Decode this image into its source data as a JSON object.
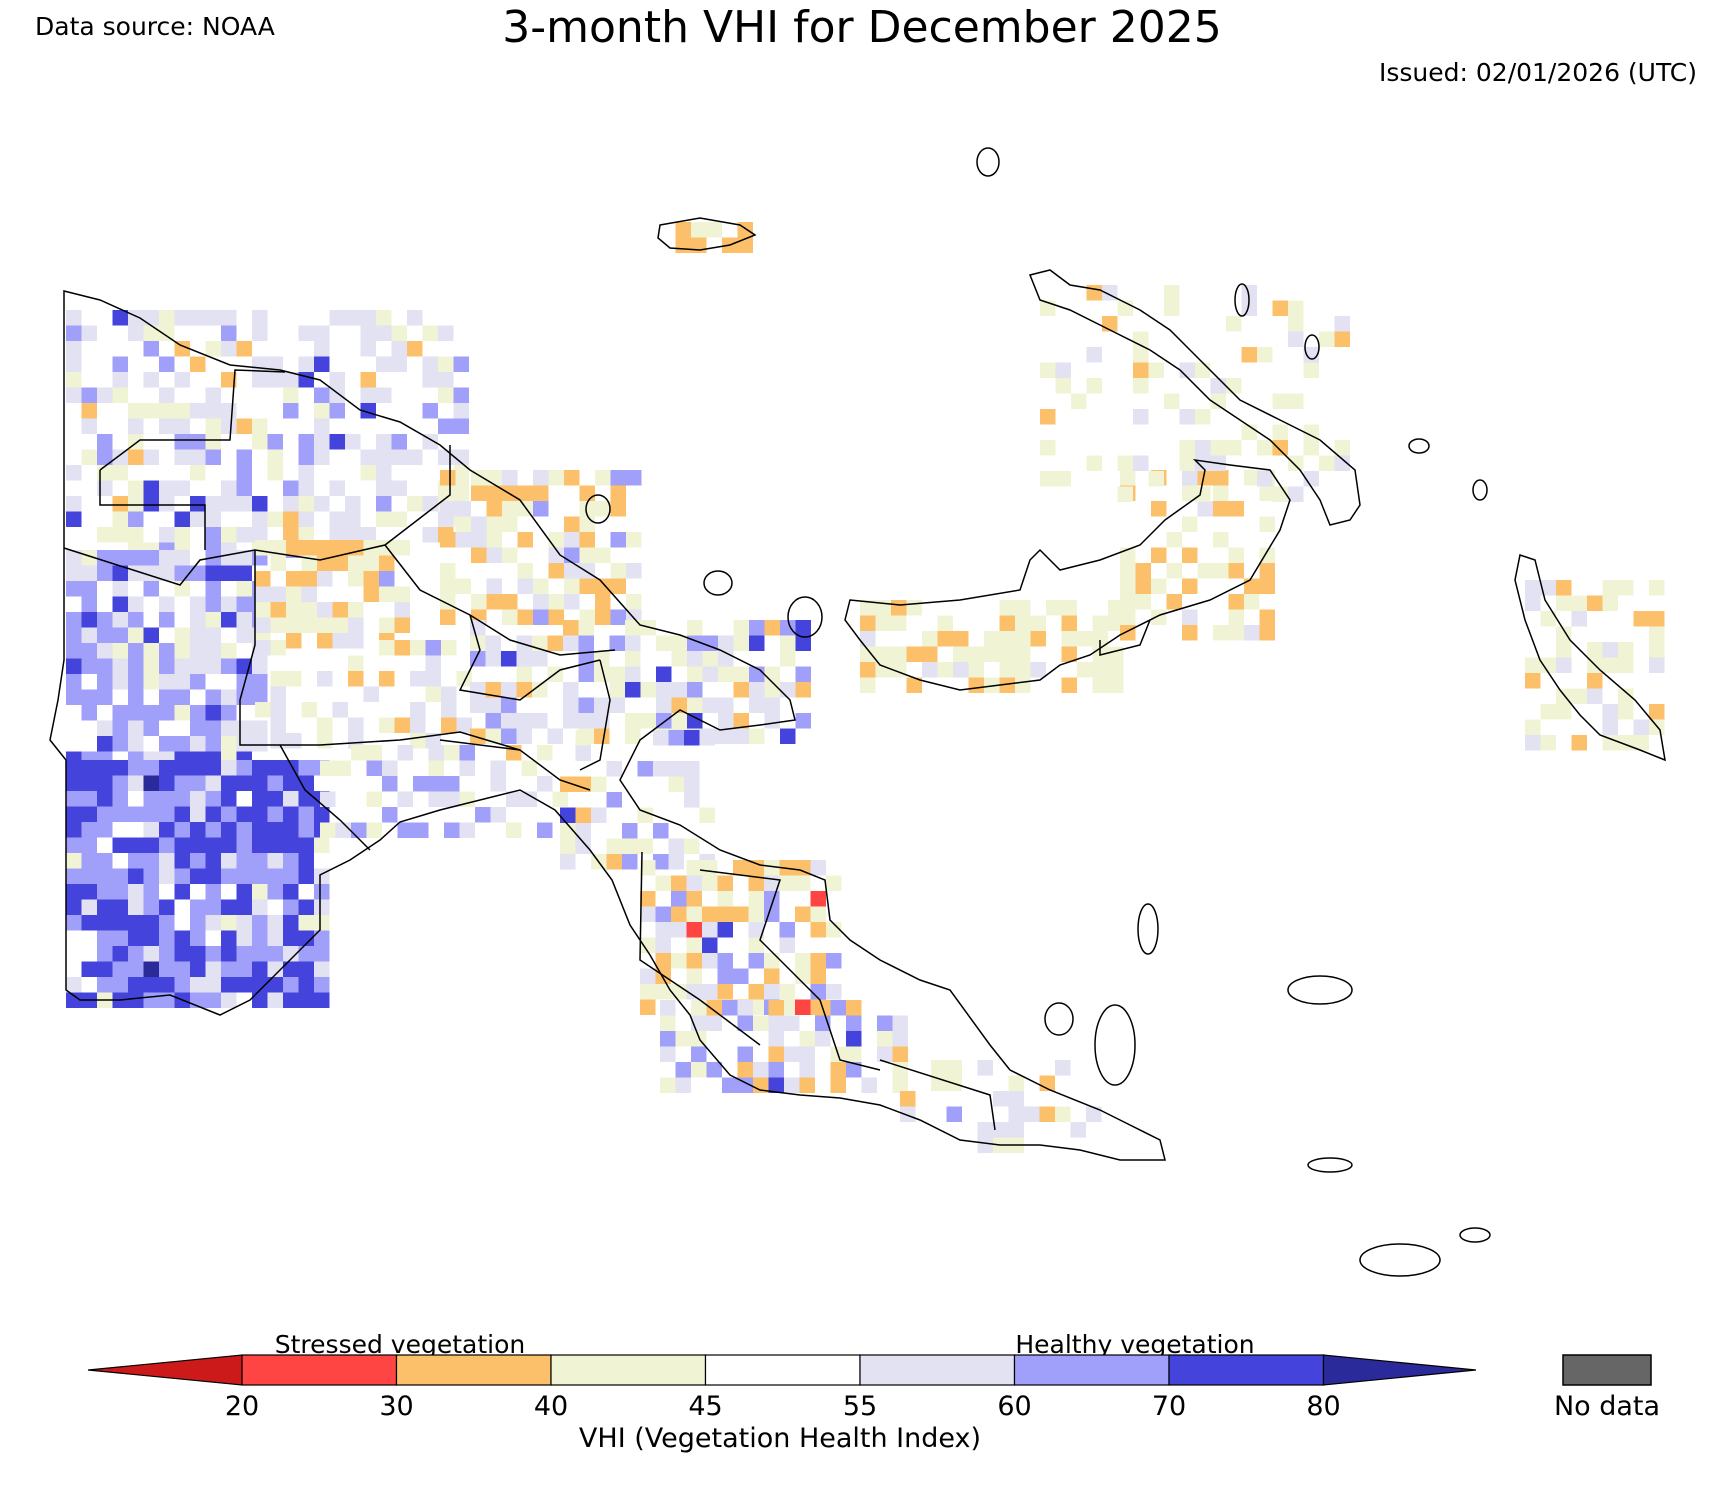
{
  "header": {
    "title": "3-month VHI for December 2025",
    "source": "Data source: NOAA",
    "issued": "Issued: 02/01/2026 (UTC)"
  },
  "legend": {
    "stressed_label": "Stressed vegetation",
    "healthy_label": "Healthy vegetation",
    "axis_label": "VHI (Vegetation Health Index)",
    "nodata_label": "No data",
    "nodata_color": "#666666",
    "ticks": [
      "20",
      "30",
      "40",
      "45",
      "55",
      "60",
      "70",
      "80"
    ],
    "bins": [
      {
        "range": "<20",
        "color": "#cc1a1a"
      },
      {
        "range": "20-30",
        "color": "#ff4444"
      },
      {
        "range": "30-40",
        "color": "#fcc06a"
      },
      {
        "range": "40-45",
        "color": "#f0f4d4"
      },
      {
        "range": "45-55",
        "color": "#ffffff"
      },
      {
        "range": "55-60",
        "color": "#e2e2f2"
      },
      {
        "range": "60-70",
        "color": "#a0a0fa"
      },
      {
        "range": "70-80",
        "color": "#4444dc"
      },
      {
        "range": ">80",
        "color": "#2a2a9a"
      }
    ]
  },
  "map": {
    "region": "Papua New Guinea",
    "dominant_classes": {
      "southwest_lowlands": "60-80 (healthy)",
      "central_highlands": "30-45 (stressed pockets)",
      "islands_east": "40-55 with scattered 30-40"
    }
  }
}
